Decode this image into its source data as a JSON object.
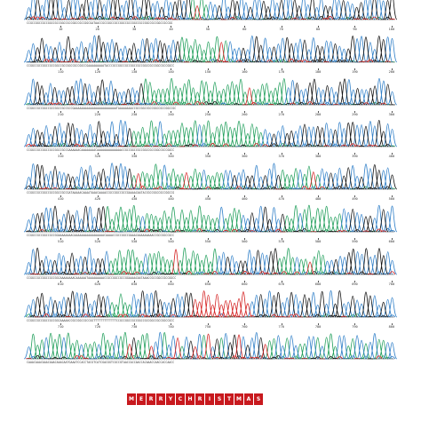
{
  "colors": {
    "A": "#1f9e5a",
    "C": "#2f7fc8",
    "G": "#111111",
    "T": "#d42020"
  },
  "rows": [
    {
      "seq": "CCGCCGGCCGCCGGCCGCCGGCCGCCGGCCGCCGGCGATAACCGCCGGCCGCCGGCCGCCGGCCGCCGGCCGCCGGCCGCCGG",
      "ticks": [
        "10",
        "20",
        "30",
        "40",
        "50",
        "60",
        "70",
        "80",
        "90",
        "100"
      ]
    },
    {
      "seq": "CCGGCCGCCGGCCGCCGGCCGCCGGCCGCCGGCCGAAAAAAAAATACCCGCCGGCCGCCGGCCGCCGGCCGCCGGCCGCCGGCC",
      "ticks": [
        "110",
        "120",
        "130",
        "140",
        "150",
        "160",
        "170",
        "180",
        "190",
        "200"
      ]
    },
    {
      "seq": "CCGGCCGCCGGCCGCCGGCCGCCGCCGAAAAAAAAAAAAAAAAAAAAAAAATAAAAAAAACCGCCGGCCGCCGGCCGCCGGCCGC",
      "ticks": [
        "210",
        "220",
        "230",
        "240",
        "250",
        "260",
        "270",
        "280",
        "290",
        "300"
      ]
    },
    {
      "seq": "CCGGCCGCCGGCCGCCGGCCGCCGAAAAAACAAAAAAAACAAAAAAAAAAAAAACCGCCGGCCGCCGGCCGCCGGCCGCCGGCC",
      "ticks": [
        "310",
        "320",
        "330",
        "340",
        "350",
        "360",
        "370",
        "380",
        "390",
        "400"
      ]
    },
    {
      "seq": "CCGGCCGCCGGCCGCCGGCCGCCGATAAAAACAAAATAAACAAAACCGCCGGCCGCCGAAAACAATACCGCCGGCCGCCGGCCG",
      "ticks": [
        "410",
        "420",
        "430",
        "440",
        "450",
        "460",
        "470",
        "480",
        "490",
        "500"
      ]
    },
    {
      "seq": "CCGGCCGCCGGCCGCCGGAAAAAAAACAAAAAAAAAAAAAAAAACAAAACCGCCGGCCGAAACAAAAAAAAACCGCCGGCCGCC",
      "ticks": [
        "510",
        "520",
        "530",
        "540",
        "550",
        "560",
        "570",
        "580",
        "590",
        "600"
      ]
    },
    {
      "seq": "CCGGCCGCCGGCCGCCGGCAAAAAAAACAAAAAATAAAAAAAAACCGCCGGCCGCCGGAAAACAATAAACCGCCGGCCGCCGGCC",
      "ticks": [
        "610",
        "620",
        "630",
        "640",
        "650",
        "660",
        "670",
        "680",
        "690",
        "700"
      ]
    },
    {
      "seq": "CCGGCCGCCGGCCGCCGGCAAAAACCGCCGGCCGCCGGTTTTTTTTTTTTTCCGCCGGCCGCCGGCCGCCGGCCGCCGGCCGCC",
      "ticks": [
        "710",
        "720",
        "730",
        "740",
        "750",
        "760",
        "770",
        "780",
        "790",
        "800"
      ]
    },
    {
      "seq": "CAAACAAACAAACAAACAAACAATGAAATCCACCTACGTCATCGACGGTCGCCGTAACCACCAACCACAAACCAACCACCAACC",
      "ticks": []
    }
  ],
  "message": [
    "M",
    "E",
    "R",
    "R",
    "Y",
    "C",
    "H",
    "R",
    "I",
    "S",
    "T",
    "M",
    "A",
    "S"
  ]
}
